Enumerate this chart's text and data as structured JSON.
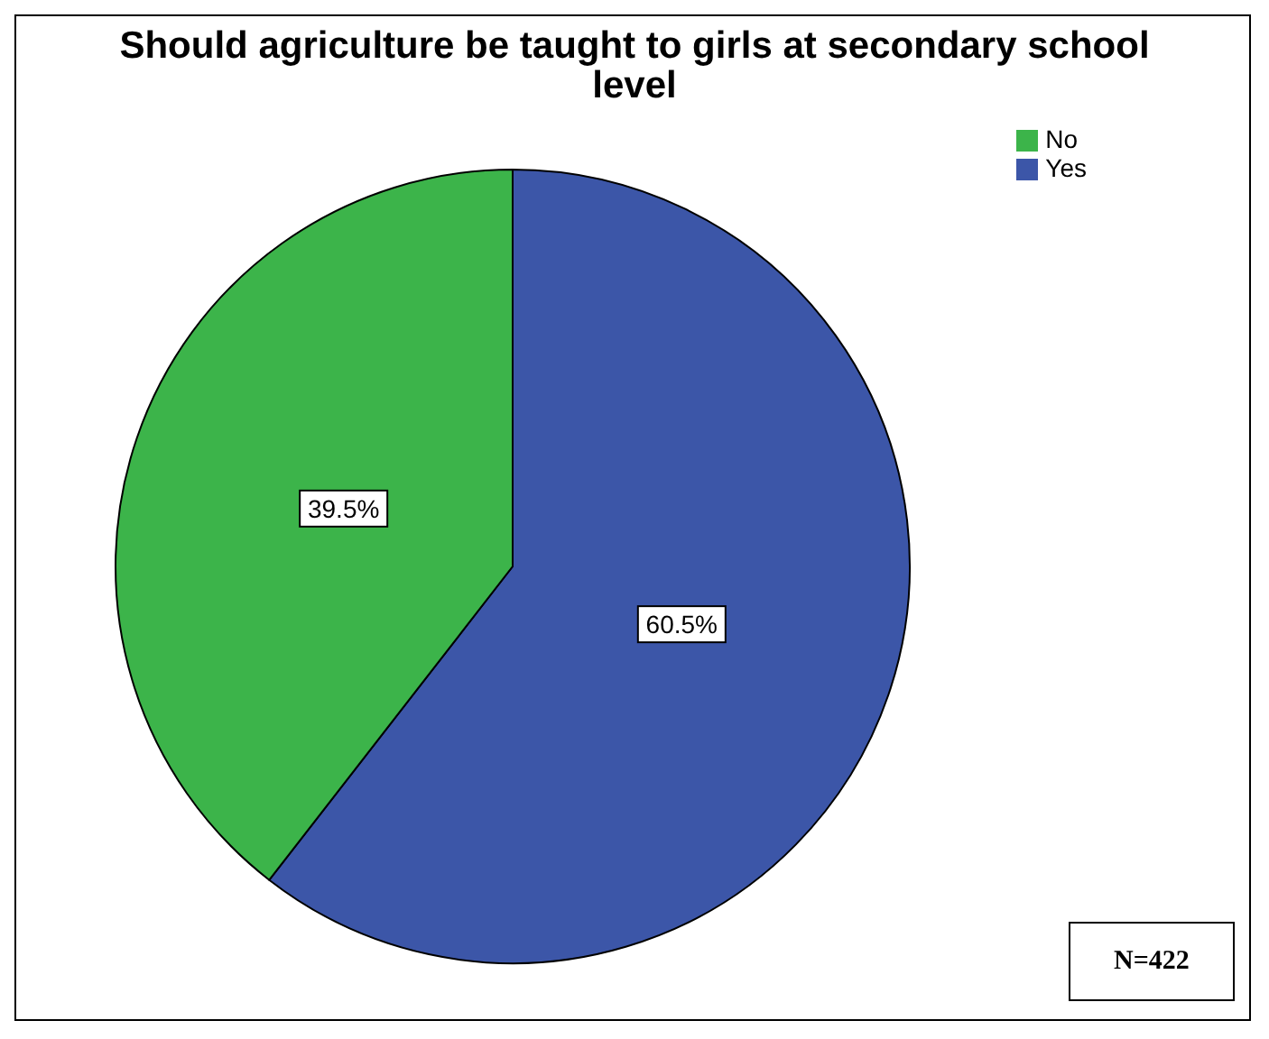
{
  "chart_data": {
    "type": "pie",
    "title": "Should agriculture be taught to girls at secondary school level",
    "categories": [
      "Yes",
      "No"
    ],
    "values": [
      60.5,
      39.5
    ],
    "colors": [
      "#3c56a8",
      "#3cb44a"
    ],
    "value_labels": [
      "60.5%",
      "39.5%"
    ],
    "legend": "top right",
    "annotations": [
      "N=422"
    ]
  }
}
